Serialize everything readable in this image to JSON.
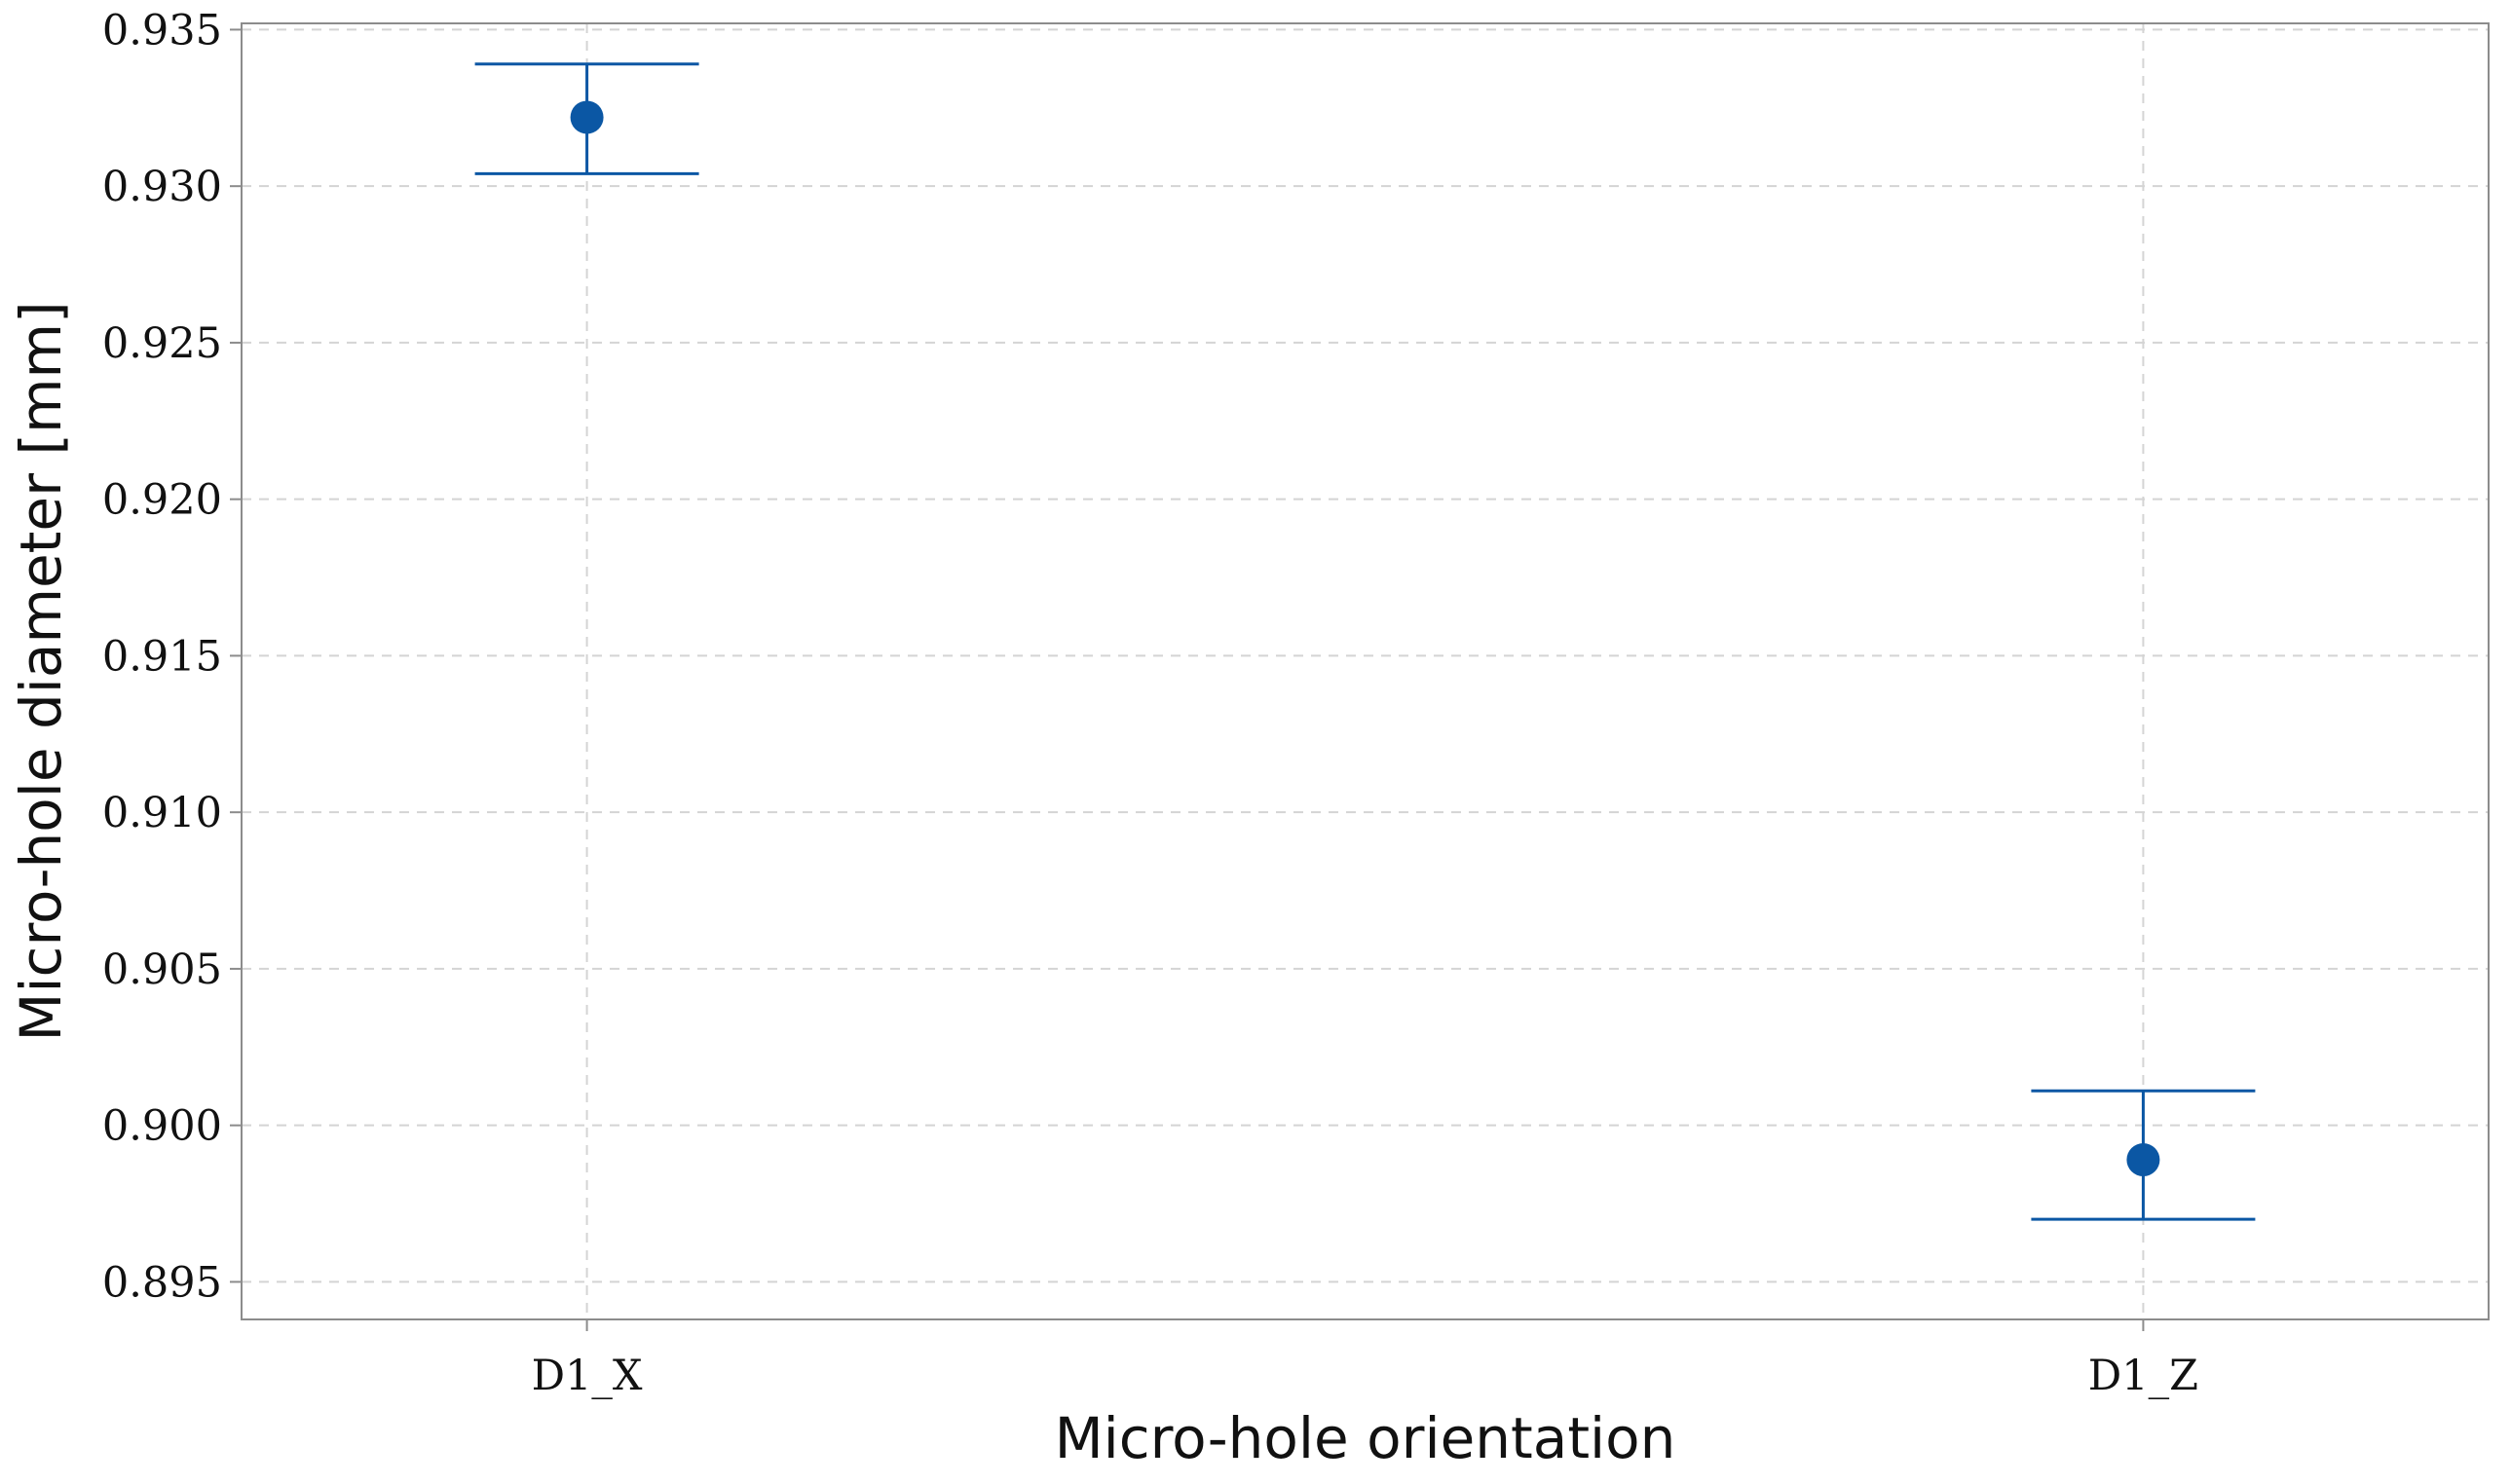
{
  "chart_data": {
    "type": "scatter",
    "subtype": "interval-plot",
    "title": "",
    "xlabel": "Micro-hole orientation",
    "ylabel": "Micro-hole diameter [mm]",
    "categories": [
      "D1_X",
      "D1_Z"
    ],
    "points": [
      {
        "category": "D1_X",
        "mean": 0.9322,
        "lower": 0.9304,
        "upper": 0.9339
      },
      {
        "category": "D1_Z",
        "mean": 0.8989,
        "lower": 0.897,
        "upper": 0.9011
      }
    ],
    "ylim": [
      0.8938,
      0.9352
    ],
    "yticks": [
      "0.895",
      "0.900",
      "0.905",
      "0.910",
      "0.915",
      "0.920",
      "0.925",
      "0.930",
      "0.935"
    ],
    "grid": true,
    "grid_style": "dashed",
    "legend": "none",
    "colors": {
      "marker": "#0b57a4",
      "grid": "#d4d4d4",
      "frame": "#8c8c8c"
    }
  }
}
